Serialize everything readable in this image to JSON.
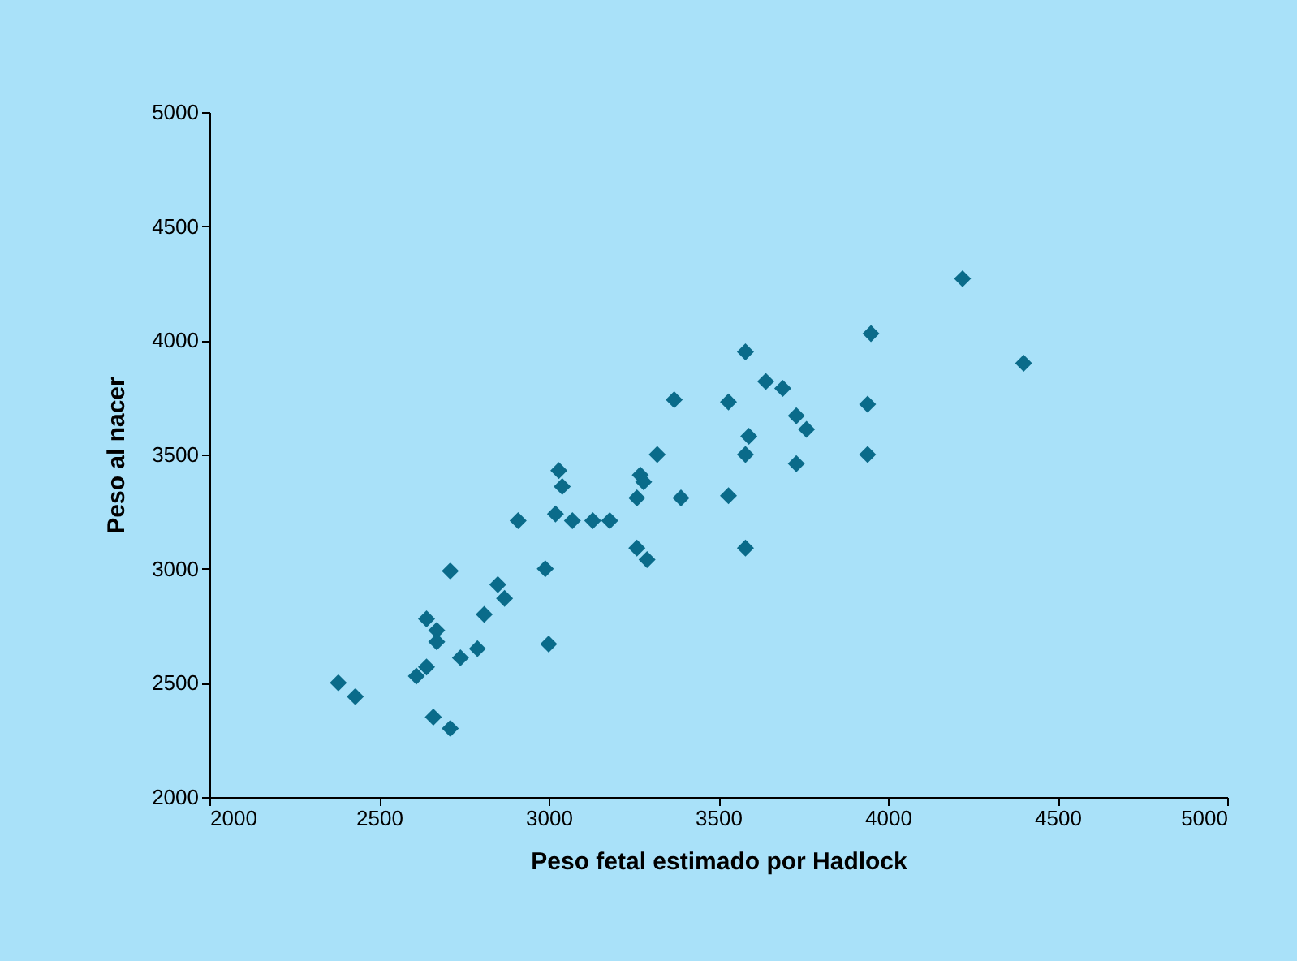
{
  "chart_data": {
    "type": "scatter",
    "xlabel": "Peso fetal estimado por Hadlock",
    "ylabel": "Peso al nacer",
    "xlim": [
      2000,
      5000
    ],
    "xticks": [
      2000,
      2500,
      3000,
      3500,
      4000,
      4500,
      5000
    ],
    "ylim": [
      2000,
      5000
    ],
    "yticks": [
      2000,
      2500,
      3000,
      3500,
      4000,
      4500,
      5000
    ],
    "grid": false,
    "legend": false,
    "marker": "diamond",
    "series": [
      {
        "color": "#0a6b8a",
        "x": [
          2380,
          2430,
          2610,
          2640,
          2640,
          2670,
          2670,
          2660,
          2710,
          2710,
          2740,
          2790,
          2810,
          2850,
          2870,
          2910,
          2990,
          3000,
          3020,
          3030,
          3040,
          3070,
          3130,
          3180,
          3260,
          3270,
          3280,
          3260,
          3290,
          3320,
          3370,
          3390,
          3530,
          3530,
          3580,
          3580,
          3590,
          3580,
          3640,
          3690,
          3730,
          3760,
          3730,
          3950,
          3940,
          3940,
          4220,
          4400
        ],
        "values": [
          2500,
          2440,
          2530,
          2570,
          2780,
          2730,
          2680,
          2350,
          2300,
          2990,
          2610,
          2650,
          2800,
          2930,
          2870,
          3210,
          3000,
          2670,
          3240,
          3430,
          3360,
          3210,
          3210,
          3210,
          3310,
          3410,
          3380,
          3090,
          3040,
          3500,
          3740,
          3310,
          3730,
          3320,
          3950,
          3500,
          3580,
          3090,
          3820,
          3790,
          3670,
          3610,
          3460,
          4030,
          3720,
          3500,
          4270,
          3900
        ]
      }
    ]
  }
}
